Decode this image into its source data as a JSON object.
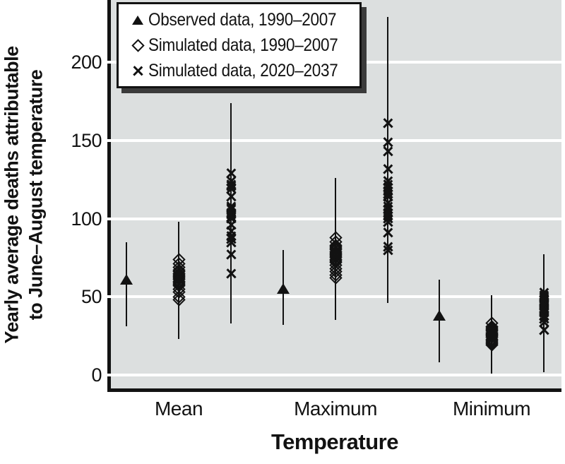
{
  "chart_data": {
    "type": "scatter",
    "title": "",
    "xlabel": "Temperature",
    "ylabel": "Yearly average deaths attributable to June–August temperature",
    "ylabel_line1": "Yearly average deaths attributable",
    "ylabel_line2": "to June–August temperature",
    "categories": [
      "Mean",
      "Maximum",
      "Minimum"
    ],
    "yticks": [
      0,
      50,
      100,
      150,
      200
    ],
    "ylim": [
      0,
      240
    ],
    "grid": true,
    "legend_position": "top-left",
    "colors": {
      "marker": "#121212",
      "plot_background": "#dcdfdf",
      "gridline": "#ffffff",
      "legend_shadow": "#3b3b3b"
    },
    "legend": [
      {
        "marker": "triangle",
        "label": "Observed data, 1990–2007"
      },
      {
        "marker": "diamond",
        "label": "Simulated data, 1990–2007"
      },
      {
        "marker": "x",
        "label": "Simulated data, 2020–2037"
      }
    ],
    "series": [
      {
        "name": "Observed data, 1990–2007",
        "marker": "triangle",
        "points": [
          {
            "category": "Mean",
            "value": 61,
            "range": [
              31,
              85
            ]
          },
          {
            "category": "Maximum",
            "value": 55,
            "range": [
              32,
              80
            ]
          },
          {
            "category": "Minimum",
            "value": 38,
            "range": [
              8,
              61
            ]
          }
        ]
      },
      {
        "name": "Simulated data, 1990–2007",
        "marker": "diamond",
        "points": [
          {
            "category": "Mean",
            "values": [
              74,
              71,
              69,
              67,
              66,
              65,
              64,
              63,
              62,
              61,
              60,
              59,
              58,
              57,
              55,
              53,
              50,
              48
            ],
            "range": [
              23,
              98
            ]
          },
          {
            "category": "Maximum",
            "values": [
              88,
              85,
              83,
              82,
              81,
              80,
              79,
              78,
              77,
              76,
              75,
              74,
              73,
              72,
              70,
              68,
              66,
              64,
              62
            ],
            "range": [
              35,
              126
            ]
          },
          {
            "category": "Minimum",
            "values": [
              33,
              31,
              30,
              29,
              28,
              28,
              27,
              27,
              26,
              26,
              25,
              25,
              24,
              23,
              22,
              21,
              20,
              19
            ],
            "range": [
              1,
              51
            ]
          }
        ]
      },
      {
        "name": "Simulated data, 2020–2037",
        "marker": "x",
        "points": [
          {
            "category": "Mean",
            "values": [
              129,
              124,
              122,
              121,
              119,
              114,
              108,
              107,
              106,
              104,
              103,
              101,
              100,
              96,
              92,
              89,
              87,
              85,
              77,
              65
            ],
            "range": [
              33,
              174
            ]
          },
          {
            "category": "Maximum",
            "values": [
              161,
              149,
              143,
              132,
              124,
              122,
              120,
              118,
              116,
              114,
              110,
              108,
              106,
              104,
              102,
              100,
              98,
              91,
              82,
              80
            ],
            "range": [
              46,
              229
            ]
          },
          {
            "category": "Minimum",
            "values": [
              53,
              51,
              50,
              49,
              48,
              47,
              46,
              45,
              44,
              43,
              42,
              41,
              40,
              38,
              36,
              34,
              29
            ],
            "range": [
              2,
              77
            ]
          }
        ]
      }
    ]
  }
}
